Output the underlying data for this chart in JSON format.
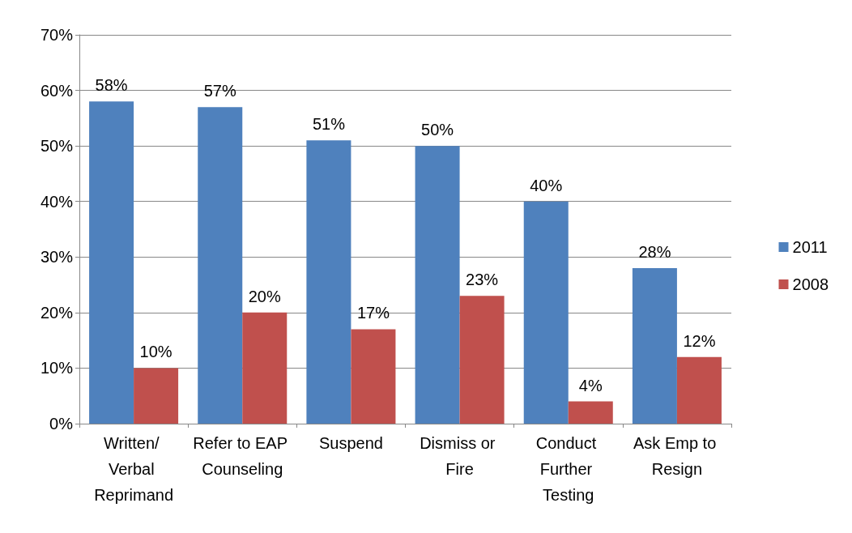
{
  "chart_data": {
    "type": "bar",
    "categories": [
      "Written/ Verbal Reprimand",
      "Refer to EAP Counseling",
      "Suspend",
      "Dismiss or Fire",
      "Conduct Further Testing",
      "Ask Emp to Resign"
    ],
    "series": [
      {
        "name": "2011",
        "color": "#4f81bd",
        "values": [
          58,
          57,
          51,
          50,
          40,
          28
        ],
        "value_labels": [
          "58%",
          "57%",
          "51%",
          "50%",
          "40%",
          "28%"
        ]
      },
      {
        "name": "2008",
        "color": "#c0504d",
        "values": [
          10,
          20,
          17,
          23,
          4,
          12
        ],
        "value_labels": [
          "10%",
          "20%",
          "17%",
          "23%",
          "4%",
          "12%"
        ]
      }
    ],
    "ylim": [
      0,
      70
    ],
    "yticks": [
      {
        "value": 0,
        "label": "0%"
      },
      {
        "value": 10,
        "label": "10%"
      },
      {
        "value": 20,
        "label": "20%"
      },
      {
        "value": 30,
        "label": "30%"
      },
      {
        "value": 40,
        "label": "40%"
      },
      {
        "value": 50,
        "label": "50%"
      },
      {
        "value": 60,
        "label": "60%"
      },
      {
        "value": 70,
        "label": "70%"
      }
    ],
    "grid": "y",
    "legend": "right"
  }
}
